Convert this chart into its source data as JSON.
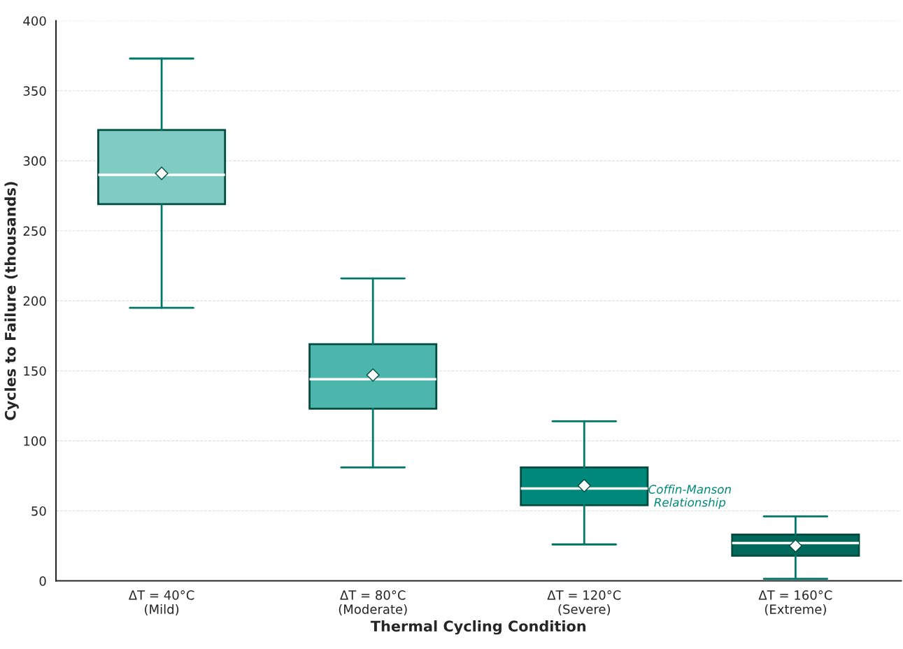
{
  "chart_data": {
    "type": "box",
    "xlabel": "Thermal Cycling Condition",
    "ylabel": "Cycles to Failure (thousands)",
    "categories": [
      "ΔT = 40°C\n(Mild)",
      "ΔT = 80°C\n(Moderate)",
      "ΔT = 120°C\n(Severe)",
      "ΔT = 160°C\n(Extreme)"
    ],
    "boxes": [
      {
        "low": 195,
        "q1": 269,
        "median": 290,
        "q3": 322,
        "high": 373,
        "mean": 291
      },
      {
        "low": 81,
        "q1": 123,
        "median": 144,
        "q3": 169,
        "high": 216,
        "mean": 147
      },
      {
        "low": 26,
        "q1": 54,
        "median": 66,
        "q3": 81,
        "high": 114,
        "mean": 68
      },
      {
        "low": 1.5,
        "q1": 18,
        "median": 27,
        "q3": 33,
        "high": 46,
        "mean": 25
      }
    ],
    "colors": [
      "#80cbc4",
      "#4db6ac",
      "#00897b",
      "#00695c"
    ],
    "ylim": [
      0,
      400
    ],
    "yticks": [
      0,
      50,
      100,
      150,
      200,
      250,
      300,
      350,
      400
    ],
    "grid": "y",
    "annotations": [
      "Coffin-Manson\nRelationship"
    ]
  }
}
